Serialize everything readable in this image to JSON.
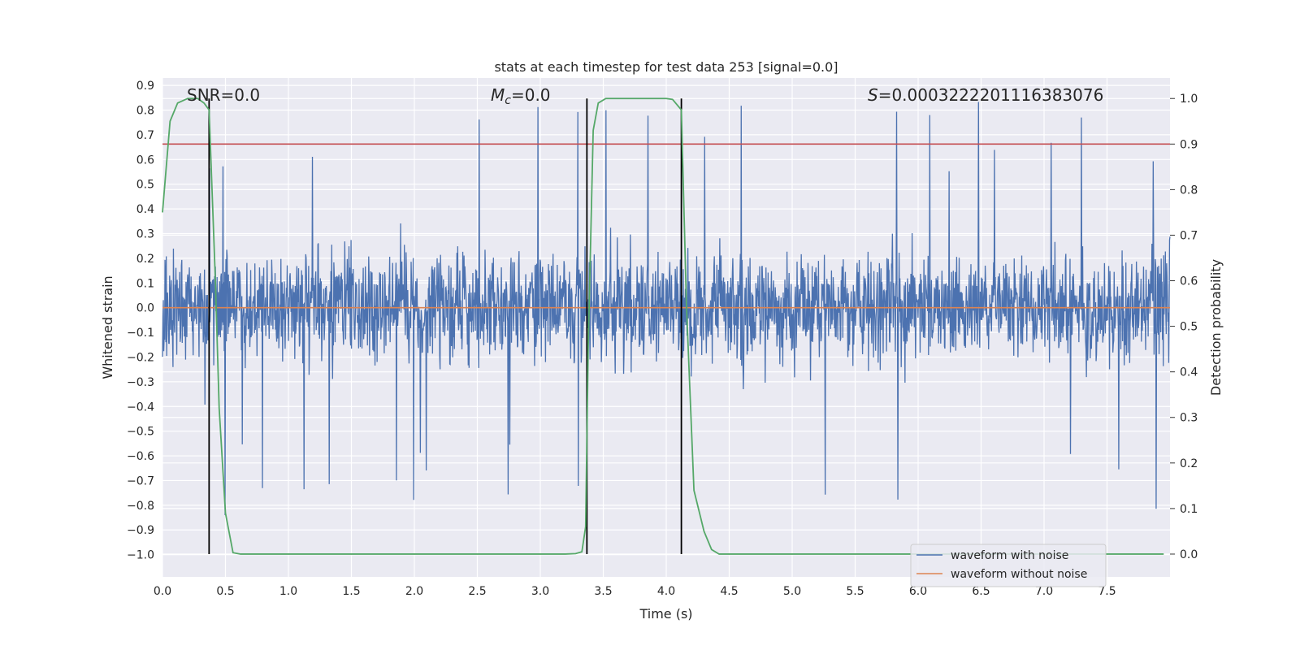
{
  "chart_data": {
    "type": "line",
    "title": "stats at each timestep for test data 253 [signal=0.0]",
    "xlabel": "Time (s)",
    "ylabel": "Whitened strain",
    "y2label": "Detection probability",
    "xlim": [
      0.0,
      8.0
    ],
    "ylim": [
      -1.09,
      0.93
    ],
    "y2lim": [
      -0.05,
      1.045
    ],
    "x_ticks": [
      0.0,
      0.5,
      1.0,
      1.5,
      2.0,
      2.5,
      3.0,
      3.5,
      4.0,
      4.5,
      5.0,
      5.5,
      6.0,
      6.5,
      7.0,
      7.5
    ],
    "x_tick_labels": [
      "0.0",
      "0.5",
      "1.0",
      "1.5",
      "2.0",
      "2.5",
      "3.0",
      "3.5",
      "4.0",
      "4.5",
      "5.0",
      "5.5",
      "6.0",
      "6.5",
      "7.0",
      "7.5"
    ],
    "y_ticks": [
      0.9,
      0.8,
      0.7,
      0.6,
      0.5,
      0.4,
      0.3,
      0.2,
      0.1,
      0.0,
      -0.1,
      -0.2,
      -0.3,
      -0.4,
      -0.5,
      -0.6,
      -0.7,
      -0.8,
      -0.9,
      -1.0
    ],
    "y_tick_labels": [
      "0.9",
      "0.8",
      "0.7",
      "0.6",
      "0.5",
      "0.4",
      "0.3",
      "0.2",
      "0.1",
      "0.0",
      "−0.1",
      "−0.2",
      "−0.3",
      "−0.4",
      "−0.5",
      "−0.6",
      "−0.7",
      "−0.8",
      "−0.9",
      "−1.0"
    ],
    "y2_ticks": [
      1.0,
      0.9,
      0.8,
      0.7,
      0.6,
      0.5,
      0.4,
      0.3,
      0.2,
      0.1,
      0.0
    ],
    "y2_tick_labels": [
      "1.0",
      "0.9",
      "0.8",
      "0.7",
      "0.6",
      "0.5",
      "0.4",
      "0.3",
      "0.2",
      "0.1",
      "0.0"
    ],
    "grid": true,
    "legend_position": "lower-right",
    "annotations": {
      "snr": "SNR=0.0",
      "mc_symbol": "M",
      "mc_sub": "c",
      "mc_value": "=0.0",
      "s_symbol": "S",
      "s_value": "=0.0003222201116383076"
    },
    "colors": {
      "noisy": "#4c72b0",
      "clean": "#dd8452",
      "probability": "#55a868",
      "threshold": "#c44e52",
      "markers": "#000000",
      "plot_bg": "#eaeaf2",
      "grid": "#ffffff"
    },
    "series": [
      {
        "name": "waveform with noise",
        "style": "dense noise band",
        "typical_amplitude": 0.3,
        "peak_positive": 0.84,
        "peak_negative": -0.98
      },
      {
        "name": "waveform without noise",
        "x": [
          0.0,
          8.0
        ],
        "y": [
          0.0,
          0.0
        ]
      }
    ],
    "probability_series": {
      "axis": "y2",
      "x": [
        0.0,
        0.06,
        0.12,
        0.2,
        0.28,
        0.33,
        0.37,
        0.42,
        0.45,
        0.5,
        0.56,
        0.62,
        1.0,
        2.0,
        3.0,
        3.2,
        3.28,
        3.33,
        3.36,
        3.38,
        3.42,
        3.46,
        3.52,
        3.6,
        4.0,
        4.05,
        4.12,
        4.16,
        4.22,
        4.3,
        4.36,
        4.42,
        4.5,
        5.0,
        6.0,
        7.0,
        7.95
      ],
      "y": [
        0.75,
        0.95,
        0.99,
        1.0,
        1.0,
        0.99,
        0.975,
        0.6,
        0.32,
        0.09,
        0.003,
        0.0,
        0.0,
        0.0,
        0.0,
        0.0,
        0.001,
        0.005,
        0.06,
        0.45,
        0.93,
        0.99,
        1.0,
        1.0,
        1.0,
        0.998,
        0.975,
        0.55,
        0.14,
        0.05,
        0.01,
        0.0,
        0.0,
        0.0,
        0.0,
        0.0,
        0.0
      ]
    },
    "threshold": {
      "axis": "y2",
      "value": 0.9
    },
    "vertical_markers": {
      "x": [
        0.37,
        3.37,
        4.12
      ],
      "y2_range": [
        0.0,
        1.0
      ]
    }
  }
}
